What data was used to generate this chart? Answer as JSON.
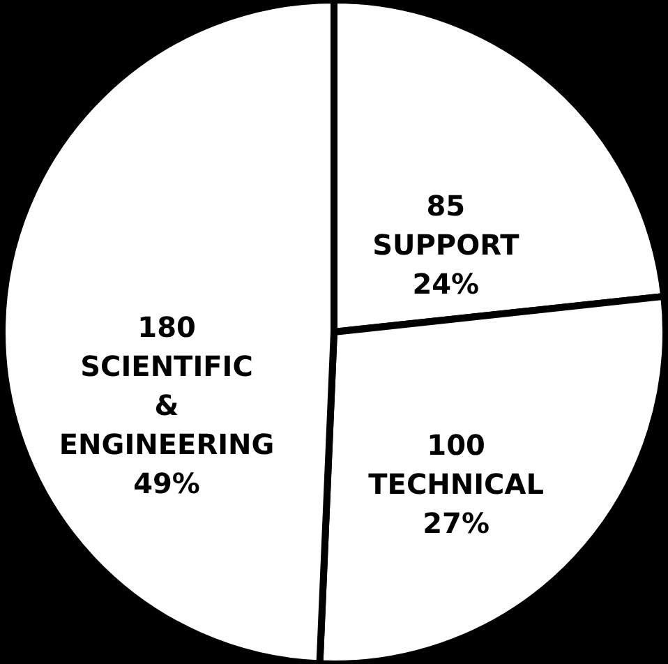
{
  "chart_data": {
    "type": "pie",
    "categories": [
      "SUPPORT",
      "TECHNICAL",
      "SCIENTIFIC\n&\nENGINEERING"
    ],
    "values": [
      85,
      100,
      180
    ],
    "colors": [
      "#ffffff",
      "#ffffff",
      "#ffffff"
    ],
    "value_labels": [
      "85",
      "100",
      "180"
    ],
    "annotations": [
      {
        "text": "24%",
        "x": "SUPPORT"
      },
      {
        "text": "27%",
        "x": "TECHNICAL"
      },
      {
        "text": "49%",
        "x": "SCIENTIFIC\n&\nENGINEERING"
      }
    ]
  }
}
